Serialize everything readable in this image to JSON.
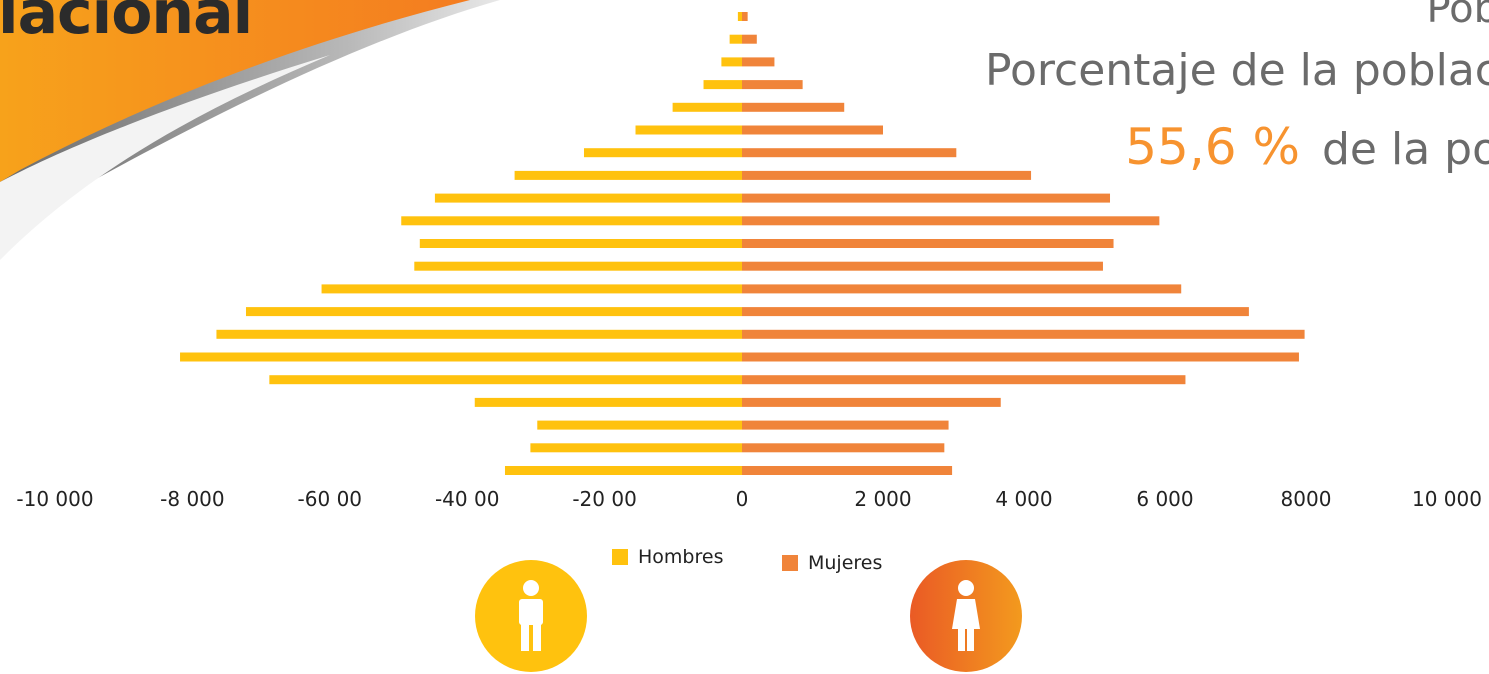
{
  "banner": {
    "title": "lacional"
  },
  "header": {
    "line1": "Pob",
    "line2": "Porcentaje de la poblac",
    "percent": "55,6 %",
    "line3_rest": "de la po"
  },
  "legend": {
    "men": {
      "label": "Hombres",
      "color": "#ffc20e"
    },
    "women": {
      "label": "Mujeres",
      "color": "#f0843a"
    }
  },
  "icons": {
    "men": "male-person-icon",
    "women": "female-person-icon"
  },
  "chart_data": {
    "type": "bar",
    "orientation": "horizontal-population-pyramid",
    "title": "",
    "xlabel": "",
    "ylabel": "",
    "xlim": [
      -10000,
      10000
    ],
    "x_ticks": [
      {
        "value": -10000,
        "label": "-10 000"
      },
      {
        "value": -8000,
        "label": "-8 000"
      },
      {
        "value": -6000,
        "label": "-60 00"
      },
      {
        "value": -4000,
        "label": "-40 00"
      },
      {
        "value": -2000,
        "label": "-20 00"
      },
      {
        "value": 0,
        "label": "0"
      },
      {
        "value": 2000,
        "label": "2 000"
      },
      {
        "value": 4000,
        "label": "4 000"
      },
      {
        "value": 6000,
        "label": "6 000"
      },
      {
        "value": 8000,
        "label": "8000"
      },
      {
        "value": 10000,
        "label": "10 000"
      }
    ],
    "grid": false,
    "legend_position": "bottom-center",
    "series": [
      {
        "name": "Hombres",
        "color": "#ffc20e",
        "values": [
          -60,
          -180,
          -300,
          -560,
          -1010,
          -1550,
          -2300,
          -3310,
          -4470,
          -4960,
          -4690,
          -4770,
          -6120,
          -7220,
          -7650,
          -8180,
          -6880,
          -3890,
          -2980,
          -3080,
          -3450
        ]
      },
      {
        "name": "Mujeres",
        "color": "#f0843a",
        "values": [
          80,
          210,
          460,
          860,
          1450,
          2000,
          3040,
          4100,
          5220,
          5920,
          5270,
          5120,
          6230,
          7190,
          7980,
          7900,
          6290,
          3670,
          2930,
          2870,
          2980
        ]
      }
    ]
  }
}
